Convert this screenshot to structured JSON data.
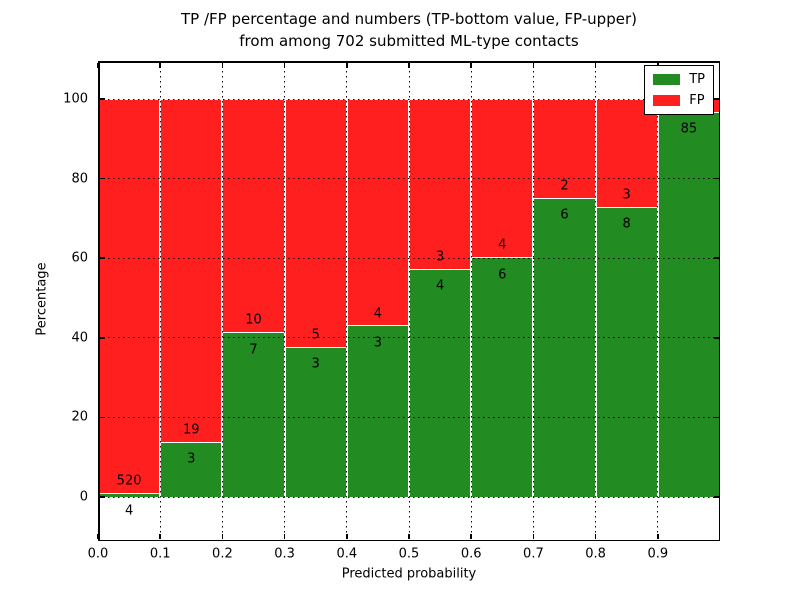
{
  "chart_data": {
    "type": "bar",
    "stacked": true,
    "title": "TP /FP percentage and numbers (TP-bottom value, FP-upper) from among 702 submitted ML-type contacts",
    "title_lines": [
      "TP /FP percentage and numbers (TP-bottom value, FP-upper)",
      "from among 702 submitted ML-type contacts"
    ],
    "xlabel": "Predicted probability",
    "ylabel": "Percentage",
    "total_contacts": 702,
    "xlim": [
      0.0,
      1.0
    ],
    "ylim": [
      -11,
      109.5
    ],
    "grid": true,
    "x_tick_labels": [
      "0.0",
      "0.1",
      "0.2",
      "0.3",
      "0.4",
      "0.5",
      "0.6",
      "0.7",
      "0.8",
      "0.9"
    ],
    "y_tick_values": [
      0,
      20,
      40,
      60,
      80,
      100
    ],
    "bin_edges": [
      0.0,
      0.1,
      0.2,
      0.3,
      0.4,
      0.5,
      0.6,
      0.7,
      0.8,
      0.9,
      1.0
    ],
    "series": [
      {
        "name": "TP",
        "color": "#228b22",
        "counts": [
          4,
          3,
          7,
          3,
          3,
          4,
          6,
          6,
          8,
          85
        ]
      },
      {
        "name": "FP",
        "color": "#ff1f1f",
        "counts": [
          520,
          19,
          10,
          5,
          4,
          3,
          4,
          2,
          3,
          3
        ]
      }
    ],
    "tp_percent_of_bin": [
      0.76,
      13.64,
      41.18,
      37.5,
      42.86,
      57.14,
      60.0,
      75.0,
      72.73,
      96.59
    ],
    "bar_edge_color": "#ffffff",
    "fp_label_hidden_for_last_bin": true,
    "legend": {
      "position": "upper right",
      "entries": [
        {
          "label": "TP",
          "color": "#228b22"
        },
        {
          "label": "FP",
          "color": "#ff1f1f"
        }
      ]
    }
  }
}
